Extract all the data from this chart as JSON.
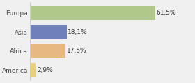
{
  "categories": [
    "America",
    "Africa",
    "Asia",
    "Europa"
  ],
  "values": [
    2.9,
    17.5,
    18.1,
    61.5
  ],
  "labels": [
    "2,9%",
    "17,5%",
    "18,1%",
    "61,5%"
  ],
  "bar_colors": [
    "#e8d080",
    "#e8b882",
    "#7080b8",
    "#b0c88a"
  ],
  "background_color": "#f0f0f0",
  "plot_bg_color": "#f0f0f0",
  "grid_color": "#ffffff",
  "xlim": [
    0,
    80
  ],
  "bar_height": 0.75,
  "label_fontsize": 6.5,
  "tick_fontsize": 6.5
}
